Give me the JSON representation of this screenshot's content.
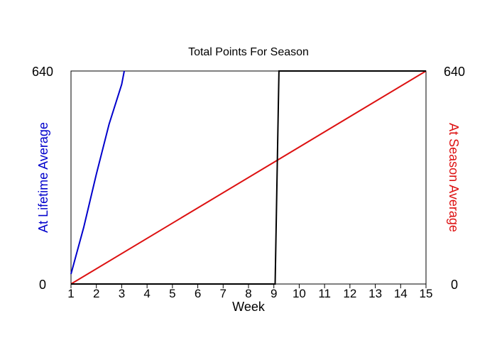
{
  "chart_data": {
    "type": "line",
    "title": "Total Points For Season",
    "xlabel": "Week",
    "ylabel_left": "At Lifetime Average",
    "ylabel_right": "At Season Average",
    "xlim": [
      1,
      15
    ],
    "ylim": [
      0,
      640
    ],
    "x_ticks": [
      "1",
      "2",
      "3",
      "4",
      "5",
      "6",
      "7",
      "8",
      "9",
      "10",
      "11",
      "12",
      "13",
      "14",
      "15"
    ],
    "y_tick_labels": {
      "left_min": "0",
      "left_max": "640",
      "right_min": "0",
      "right_max": "640"
    },
    "grid": false,
    "legend": "none",
    "series": [
      {
        "color": "#0000cc",
        "x": [
          1,
          1.5,
          2,
          2.5,
          3,
          3.1
        ],
        "y": [
          30,
          170,
          330,
          480,
          600,
          640
        ]
      },
      {
        "color": "#dd1111",
        "x": [
          1,
          15
        ],
        "y": [
          0,
          640
        ]
      },
      {
        "color": "#000000",
        "x": [
          1,
          9.05,
          9.2,
          15
        ],
        "y": [
          0,
          0,
          640,
          640
        ]
      }
    ]
  }
}
